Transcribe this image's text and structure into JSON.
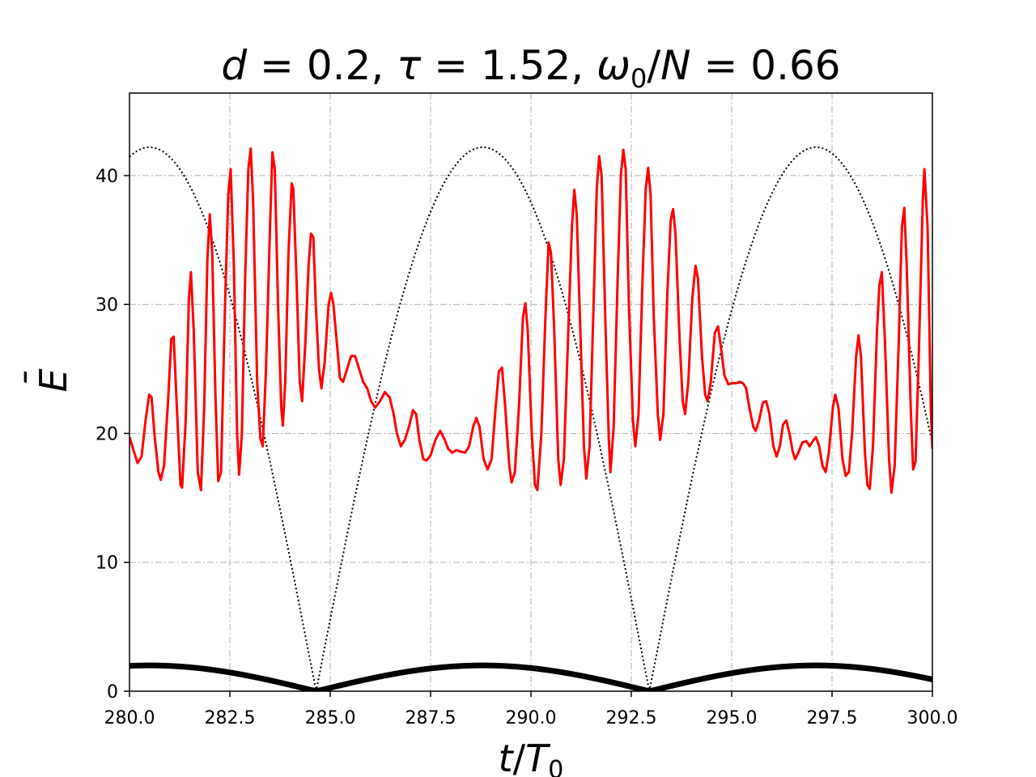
{
  "chart_data": {
    "type": "line",
    "title": {
      "d_sym": "d",
      "d_val": "0.2",
      "tau_sym": "τ",
      "tau_val": "1.52",
      "omega_sym": "ω",
      "omega_sub": "0",
      "omega_den": "N",
      "omega_val": "0.66",
      "eq": " = ",
      "sep": ", ",
      "slash": "/"
    },
    "xlabel": {
      "num": "t",
      "slash": "/",
      "den": "T",
      "sub": "0"
    },
    "ylabel": {
      "main": "E",
      "bar": "¯"
    },
    "xlim": [
      280,
      300
    ],
    "ylim": [
      0,
      46.4
    ],
    "xticks": [
      "280.0",
      "282.5",
      "285.0",
      "287.5",
      "290.0",
      "292.5",
      "295.0",
      "297.5",
      "300.0"
    ],
    "yticks": [
      "0",
      "10",
      "20",
      "30",
      "40"
    ],
    "grid": true,
    "series": [
      {
        "style": "solid",
        "color": "#ff0000",
        "width": 3,
        "values": [
          [
            280.0,
            19.7
          ],
          [
            280.12,
            18.5
          ],
          [
            280.2,
            17.7
          ],
          [
            280.3,
            18.2
          ],
          [
            280.4,
            21.0
          ],
          [
            280.49,
            23.0
          ],
          [
            280.55,
            22.8
          ],
          [
            280.62,
            20.0
          ],
          [
            280.72,
            17.0
          ],
          [
            280.78,
            16.4
          ],
          [
            280.86,
            17.5
          ],
          [
            280.96,
            22.5
          ],
          [
            281.04,
            27.3
          ],
          [
            281.1,
            27.5
          ],
          [
            281.18,
            22.0
          ],
          [
            281.27,
            16.0
          ],
          [
            281.31,
            15.8
          ],
          [
            281.4,
            21.0
          ],
          [
            281.48,
            30.5
          ],
          [
            281.53,
            32.5
          ],
          [
            281.6,
            28.0
          ],
          [
            281.7,
            17.0
          ],
          [
            281.78,
            15.6
          ],
          [
            281.86,
            22.0
          ],
          [
            281.94,
            33.5
          ],
          [
            282.0,
            37.0
          ],
          [
            282.06,
            34.0
          ],
          [
            282.14,
            23.0
          ],
          [
            282.21,
            16.3
          ],
          [
            282.28,
            17.0
          ],
          [
            282.38,
            30.0
          ],
          [
            282.46,
            38.5
          ],
          [
            282.52,
            40.5
          ],
          [
            282.6,
            33.0
          ],
          [
            282.68,
            20.0
          ],
          [
            282.73,
            16.8
          ],
          [
            282.8,
            20.0
          ],
          [
            282.88,
            32.0
          ],
          [
            282.96,
            40.5
          ],
          [
            283.02,
            42.1
          ],
          [
            283.08,
            38.0
          ],
          [
            283.18,
            24.0
          ],
          [
            283.26,
            19.6
          ],
          [
            283.32,
            19.0
          ],
          [
            283.4,
            25.0
          ],
          [
            283.5,
            36.0
          ],
          [
            283.56,
            41.8
          ],
          [
            283.62,
            40.5
          ],
          [
            283.7,
            30.0
          ],
          [
            283.78,
            22.0
          ],
          [
            283.82,
            20.6
          ],
          [
            283.88,
            24.0
          ],
          [
            283.96,
            34.0
          ],
          [
            284.04,
            39.4
          ],
          [
            284.08,
            39.0
          ],
          [
            284.16,
            32.0
          ],
          [
            284.24,
            24.0
          ],
          [
            284.3,
            22.5
          ],
          [
            284.38,
            27.0
          ],
          [
            284.46,
            33.0
          ],
          [
            284.52,
            35.5
          ],
          [
            284.58,
            35.2
          ],
          [
            284.64,
            30.0
          ],
          [
            284.72,
            25.0
          ],
          [
            284.78,
            23.5
          ],
          [
            284.86,
            25.5
          ],
          [
            284.96,
            30.0
          ],
          [
            285.02,
            30.9
          ],
          [
            285.08,
            30.0
          ],
          [
            285.18,
            26.5
          ],
          [
            285.24,
            24.3
          ],
          [
            285.32,
            24.0
          ],
          [
            285.42,
            25.0
          ],
          [
            285.52,
            26.0
          ],
          [
            285.62,
            26.0
          ],
          [
            285.72,
            25.0
          ],
          [
            285.82,
            24.0
          ],
          [
            285.92,
            23.5
          ],
          [
            286.02,
            22.5
          ],
          [
            286.12,
            22.0
          ],
          [
            286.24,
            22.5
          ],
          [
            286.36,
            23.2
          ],
          [
            286.48,
            22.8
          ],
          [
            286.58,
            21.5
          ],
          [
            286.66,
            20.0
          ],
          [
            286.76,
            19.0
          ],
          [
            286.86,
            19.5
          ],
          [
            286.96,
            20.5
          ],
          [
            287.06,
            21.8
          ],
          [
            287.14,
            21.5
          ],
          [
            287.22,
            19.5
          ],
          [
            287.32,
            18.0
          ],
          [
            287.4,
            17.9
          ],
          [
            287.5,
            18.3
          ],
          [
            287.62,
            19.5
          ],
          [
            287.74,
            20.2
          ],
          [
            287.84,
            19.6
          ],
          [
            287.94,
            18.8
          ],
          [
            288.04,
            18.5
          ],
          [
            288.14,
            18.7
          ],
          [
            288.24,
            18.6
          ],
          [
            288.36,
            18.5
          ],
          [
            288.46,
            19.0
          ],
          [
            288.56,
            20.5
          ],
          [
            288.64,
            21.2
          ],
          [
            288.72,
            20.5
          ],
          [
            288.82,
            18.0
          ],
          [
            288.92,
            17.2
          ],
          [
            289.02,
            18.0
          ],
          [
            289.12,
            22.0
          ],
          [
            289.2,
            24.8
          ],
          [
            289.28,
            25.1
          ],
          [
            289.36,
            22.0
          ],
          [
            289.46,
            17.5
          ],
          [
            289.52,
            16.2
          ],
          [
            289.6,
            17.0
          ],
          [
            289.7,
            22.0
          ],
          [
            289.8,
            29.0
          ],
          [
            289.86,
            30.1
          ],
          [
            289.92,
            28.0
          ],
          [
            290.02,
            20.0
          ],
          [
            290.1,
            16.0
          ],
          [
            290.16,
            15.6
          ],
          [
            290.26,
            20.0
          ],
          [
            290.36,
            29.0
          ],
          [
            290.44,
            34.8
          ],
          [
            290.5,
            34.0
          ],
          [
            290.58,
            28.0
          ],
          [
            290.68,
            18.0
          ],
          [
            290.74,
            16.0
          ],
          [
            290.82,
            18.0
          ],
          [
            290.92,
            27.0
          ],
          [
            291.02,
            36.0
          ],
          [
            291.08,
            38.9
          ],
          [
            291.14,
            37.0
          ],
          [
            291.24,
            27.0
          ],
          [
            291.32,
            19.0
          ],
          [
            291.38,
            16.5
          ],
          [
            291.46,
            19.0
          ],
          [
            291.56,
            30.0
          ],
          [
            291.64,
            39.0
          ],
          [
            291.7,
            41.5
          ],
          [
            291.76,
            40.0
          ],
          [
            291.86,
            28.0
          ],
          [
            291.94,
            19.5
          ],
          [
            291.98,
            17.0
          ],
          [
            292.06,
            20.5
          ],
          [
            292.16,
            32.0
          ],
          [
            292.24,
            40.0
          ],
          [
            292.3,
            42.0
          ],
          [
            292.36,
            40.5
          ],
          [
            292.44,
            30.0
          ],
          [
            292.54,
            21.0
          ],
          [
            292.6,
            19.0
          ],
          [
            292.68,
            21.5
          ],
          [
            292.78,
            32.0
          ],
          [
            292.86,
            39.0
          ],
          [
            292.92,
            40.6
          ],
          [
            292.98,
            38.5
          ],
          [
            293.06,
            29.0
          ],
          [
            293.16,
            21.5
          ],
          [
            293.22,
            19.5
          ],
          [
            293.3,
            21.5
          ],
          [
            293.4,
            31.0
          ],
          [
            293.48,
            36.5
          ],
          [
            293.54,
            37.4
          ],
          [
            293.6,
            35.5
          ],
          [
            293.7,
            27.5
          ],
          [
            293.78,
            22.5
          ],
          [
            293.84,
            21.5
          ],
          [
            293.92,
            24.0
          ],
          [
            294.02,
            30.5
          ],
          [
            294.1,
            33.0
          ],
          [
            294.16,
            32.0
          ],
          [
            294.26,
            26.0
          ],
          [
            294.34,
            23.0
          ],
          [
            294.4,
            22.5
          ],
          [
            294.48,
            24.0
          ],
          [
            294.58,
            27.8
          ],
          [
            294.66,
            28.3
          ],
          [
            294.74,
            26.5
          ],
          [
            294.82,
            24.5
          ],
          [
            294.92,
            23.8
          ],
          [
            295.02,
            23.9
          ],
          [
            295.12,
            23.9
          ],
          [
            295.2,
            24.0
          ],
          [
            295.28,
            23.9
          ],
          [
            295.36,
            23.5
          ],
          [
            295.44,
            22.0
          ],
          [
            295.54,
            20.5
          ],
          [
            295.6,
            20.2
          ],
          [
            295.68,
            21.0
          ],
          [
            295.78,
            22.4
          ],
          [
            295.86,
            22.5
          ],
          [
            295.94,
            21.5
          ],
          [
            296.04,
            19.0
          ],
          [
            296.12,
            18.2
          ],
          [
            296.2,
            19.0
          ],
          [
            296.28,
            20.7
          ],
          [
            296.36,
            21.0
          ],
          [
            296.44,
            20.0
          ],
          [
            296.52,
            18.6
          ],
          [
            296.58,
            18.0
          ],
          [
            296.66,
            18.5
          ],
          [
            296.76,
            19.3
          ],
          [
            296.86,
            19.4
          ],
          [
            296.94,
            19.0
          ],
          [
            297.02,
            19.4
          ],
          [
            297.1,
            19.7
          ],
          [
            297.18,
            19.0
          ],
          [
            297.26,
            17.5
          ],
          [
            297.34,
            17.0
          ],
          [
            297.42,
            18.5
          ],
          [
            297.52,
            22.0
          ],
          [
            297.58,
            23.0
          ],
          [
            297.66,
            22.0
          ],
          [
            297.76,
            18.0
          ],
          [
            297.84,
            16.7
          ],
          [
            297.92,
            17.0
          ],
          [
            298.0,
            20.0
          ],
          [
            298.1,
            26.0
          ],
          [
            298.16,
            27.6
          ],
          [
            298.22,
            26.0
          ],
          [
            298.32,
            18.5
          ],
          [
            298.38,
            16.0
          ],
          [
            298.44,
            15.7
          ],
          [
            298.52,
            19.0
          ],
          [
            298.62,
            28.0
          ],
          [
            298.68,
            31.5
          ],
          [
            298.74,
            32.5
          ],
          [
            298.82,
            27.0
          ],
          [
            298.92,
            18.0
          ],
          [
            298.98,
            15.4
          ],
          [
            299.06,
            17.5
          ],
          [
            299.16,
            27.0
          ],
          [
            299.24,
            36.0
          ],
          [
            299.3,
            37.5
          ],
          [
            299.36,
            33.0
          ],
          [
            299.46,
            22.0
          ],
          [
            299.52,
            17.2
          ],
          [
            299.58,
            17.8
          ],
          [
            299.66,
            26.0
          ],
          [
            299.76,
            38.0
          ],
          [
            299.8,
            40.5
          ],
          [
            299.88,
            36.0
          ],
          [
            299.96,
            22.0
          ],
          [
            300.0,
            18.8
          ]
        ]
      },
      {
        "style": "dotted",
        "color": "#000000",
        "width": 2,
        "formula": "abs_cos",
        "amplitude": 42.2,
        "peak_x": 280.5,
        "zero_x": 284.65
      },
      {
        "style": "solid",
        "color": "#000000",
        "width": 7,
        "formula": "abs_cos",
        "amplitude": 2.0,
        "peak_x": 280.5,
        "zero_x": 284.65
      }
    ]
  }
}
